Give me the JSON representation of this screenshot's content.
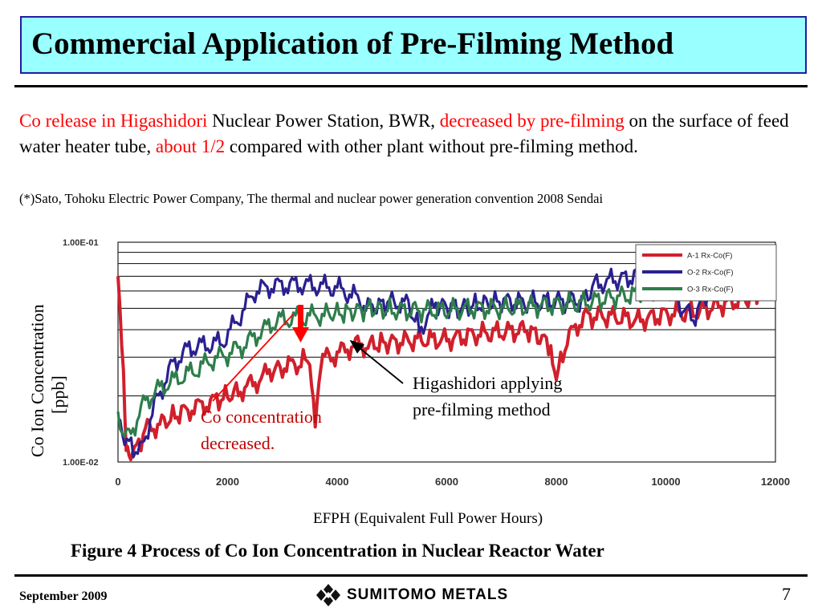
{
  "title": "Commercial Application of Pre-Filming Method",
  "intro": {
    "seg1": "Co release in Higashidori",
    "seg2": " Nuclear Power Station, BWR, ",
    "seg3": "decreased by pre-filming",
    "seg4": " on the surface of feed water heater tube, ",
    "seg5": "about 1/2",
    "seg6": " compared with other plant without pre-filming method."
  },
  "note": "(*)Sato, Tohoku Electric Power Company, The thermal and nuclear power generation convention 2008 Sendai",
  "chart_data": {
    "type": "line",
    "y_scale": "log",
    "xlim": [
      0,
      12000
    ],
    "ylim": [
      0.01,
      0.1
    ],
    "x_ticks": [
      "0",
      "2000",
      "4000",
      "6000",
      "8000",
      "10000",
      "12000"
    ],
    "y_ticks": [
      "1.00E-01",
      "1.00E-02"
    ],
    "xlabel": "EFPH (Equivalent Full Power Hours)",
    "ylabel_line1": "Co Ion Concentration",
    "ylabel_line2": "[ppb]",
    "legend_position": "top-right",
    "series": [
      {
        "name": "A-1 Rx-Co(F)",
        "color": "#d0202c",
        "x": [
          0,
          100,
          150,
          200,
          300,
          500,
          800,
          1200,
          1500,
          1800,
          2200,
          2500,
          2800,
          3000,
          3300,
          3500,
          3600,
          3700,
          4000,
          4300,
          4600,
          5000,
          5500,
          6000,
          6500,
          7000,
          7500,
          7900,
          8000,
          8200,
          8500,
          9000,
          9500,
          10000,
          10500,
          11000,
          11500,
          11700
        ],
        "y": [
          0.07,
          0.025,
          0.012,
          0.01,
          0.011,
          0.014,
          0.015,
          0.017,
          0.018,
          0.019,
          0.021,
          0.023,
          0.026,
          0.027,
          0.028,
          0.03,
          0.016,
          0.029,
          0.031,
          0.034,
          0.034,
          0.035,
          0.036,
          0.036,
          0.038,
          0.039,
          0.04,
          0.034,
          0.024,
          0.036,
          0.046,
          0.046,
          0.044,
          0.047,
          0.048,
          0.052,
          0.056,
          0.058
        ]
      },
      {
        "name": "O-2 Rx-Co(F)",
        "color": "#2a2090",
        "x": [
          0,
          200,
          400,
          700,
          1000,
          1300,
          1600,
          1900,
          2200,
          2500,
          2800,
          3100,
          3400,
          3700,
          4000,
          4300,
          4600,
          5000,
          5300,
          5500,
          5800,
          6200,
          6600,
          7000,
          7500,
          8000,
          8500,
          8700,
          9000,
          9500,
          9700,
          10000,
          10500,
          11000,
          11700
        ],
        "y": [
          0.015,
          0.012,
          0.011,
          0.019,
          0.028,
          0.033,
          0.034,
          0.035,
          0.045,
          0.06,
          0.063,
          0.064,
          0.064,
          0.063,
          0.062,
          0.057,
          0.05,
          0.054,
          0.052,
          0.04,
          0.052,
          0.05,
          0.052,
          0.054,
          0.053,
          0.054,
          0.054,
          0.064,
          0.067,
          0.07,
          0.08,
          0.06,
          0.045,
          0.075,
          0.09
        ]
      },
      {
        "name": "O-3 Rx-Co(F)",
        "color": "#2e7d4b",
        "x": [
          0,
          200,
          500,
          800,
          1100,
          1400,
          1700,
          2000,
          2300,
          2600,
          2900,
          3200,
          3500,
          3800,
          4200,
          4600,
          5000,
          5500,
          6000,
          6500,
          7000,
          7500,
          8000,
          8500,
          9000,
          9500,
          10000,
          10500,
          11000,
          11500,
          11700
        ],
        "y": [
          0.015,
          0.013,
          0.019,
          0.022,
          0.024,
          0.026,
          0.029,
          0.031,
          0.034,
          0.039,
          0.044,
          0.045,
          0.046,
          0.047,
          0.048,
          0.05,
          0.049,
          0.049,
          0.049,
          0.05,
          0.05,
          0.051,
          0.052,
          0.053,
          0.056,
          0.058,
          0.062,
          0.065,
          0.068,
          0.068,
          0.07
        ]
      }
    ],
    "annotations": {
      "higashidori_line1": "Higashidori applying",
      "higashidori_line2": "pre-filming method",
      "decrease_line1": "Co concentration",
      "decrease_line2": "decreased."
    }
  },
  "caption": "Figure 4 Process of Co Ion Concentration in Nuclear Reactor Water",
  "footer": {
    "date": "September 2009",
    "logo_text": "SUMITOMO METALS",
    "page_number": "7"
  }
}
